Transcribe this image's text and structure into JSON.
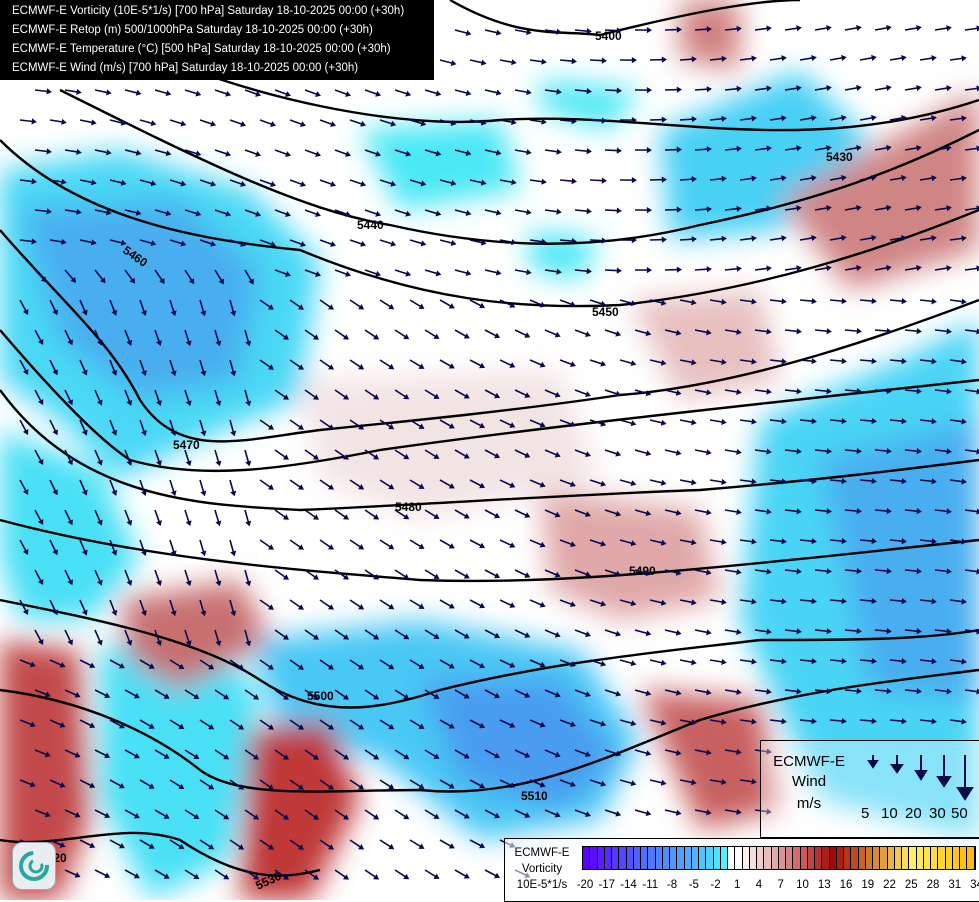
{
  "header": {
    "lines": [
      "ECMWF-E Vorticity (10E-5*1/s) [700 hPa] Saturday 18-10-2025 00:00 (+30h)",
      "ECMWF-E Retop (m) 500/1000hPa Saturday 18-10-2025 00:00 (+30h)",
      "ECMWF-E Temperature (°C) [500 hPa] Saturday 18-10-2025 00:00 (+30h)",
      "ECMWF-E Wind (m/s) [700 hPa] Saturday 18-10-2025 00:00 (+30h)"
    ]
  },
  "contours": [
    "5400",
    "5430",
    "5440",
    "5450",
    "5460",
    "5470",
    "5480",
    "5490",
    "5500",
    "5510",
    "5520",
    "5530"
  ],
  "wind_legend": {
    "line1": "ECMWF-E",
    "line2": "Wind",
    "unit": "m/s",
    "speeds": [
      "5",
      "10",
      "20",
      "30",
      "50"
    ]
  },
  "vorticity_legend": {
    "line1": "ECMWF-E",
    "line2": "Vorticity",
    "unit": "10E-5*1/s",
    "ticks": [
      "-20",
      "-17",
      "-14",
      "-11",
      "-8",
      "-5",
      "-2",
      "1",
      "4",
      "7",
      "10",
      "13",
      "16",
      "19",
      "22",
      "25",
      "28",
      "31",
      "34"
    ],
    "colors": {
      "min": "#5a00ff",
      "neg": "#4fb4ff",
      "zero_neg": "#4ff0ff",
      "zero": "#ffffff",
      "pos_mid": "#c85a5a",
      "pos_dark": "#a00a0a",
      "pos_orange": "#d2782d",
      "pos_yellow": "#fff064",
      "max": "#ffb400"
    }
  },
  "colors": {
    "cyan": "#4fe8f5",
    "blue": "#4aaef0",
    "red": "#c0474a",
    "pink": "#ecc8c8",
    "contour": "#000000",
    "arrow": "#0a0a4a",
    "border": "#d8b882"
  }
}
